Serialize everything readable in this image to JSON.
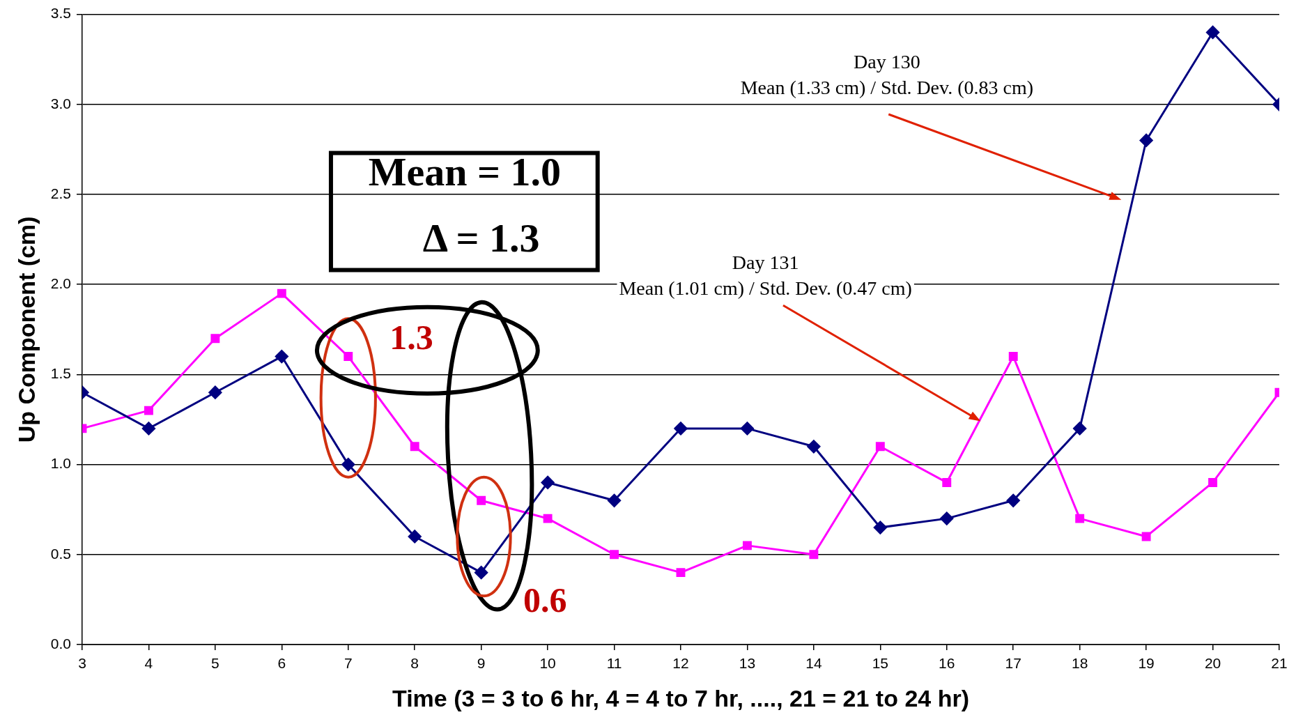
{
  "chart_data": {
    "type": "line",
    "xlabel": "Time (3 = 3 to 6 hr, 4 = 4 to 7 hr, ...., 21 = 21 to 24 hr)",
    "ylabel": "Up Component (cm)",
    "x": [
      3,
      4,
      5,
      6,
      7,
      8,
      9,
      10,
      11,
      12,
      13,
      14,
      15,
      16,
      17,
      18,
      19,
      20,
      21
    ],
    "series": [
      {
        "color": "#000080",
        "marker": "diamond",
        "values": [
          1.4,
          1.2,
          1.4,
          1.6,
          1.0,
          0.6,
          0.4,
          0.9,
          0.8,
          1.2,
          1.2,
          1.1,
          0.65,
          0.7,
          0.8,
          1.2,
          2.8,
          3.4,
          3.0
        ]
      },
      {
        "color": "#ff00ff",
        "marker": "square",
        "values": [
          1.2,
          1.3,
          1.7,
          1.95,
          1.6,
          1.1,
          0.8,
          0.7,
          0.5,
          0.4,
          0.55,
          0.5,
          1.1,
          0.9,
          1.6,
          0.7,
          0.6,
          0.9,
          1.4
        ]
      }
    ],
    "xlim": [
      3,
      21
    ],
    "xticks": [
      3,
      4,
      5,
      6,
      7,
      8,
      9,
      10,
      11,
      12,
      13,
      14,
      15,
      16,
      17,
      18,
      19,
      20,
      21
    ],
    "ylim": [
      0,
      3.5
    ],
    "yticks": [
      {
        "value": 0,
        "label": "0.0"
      },
      {
        "value": 0.5,
        "label": "0.5"
      },
      {
        "value": 1,
        "label": "1.0"
      },
      {
        "value": 1.5,
        "label": "1.5"
      },
      {
        "value": 2,
        "label": "2.0"
      },
      {
        "value": 2.5,
        "label": "2.5"
      },
      {
        "value": 3,
        "label": "3.0"
      },
      {
        "value": 3.5,
        "label": "3.5"
      }
    ],
    "grid": "y",
    "legend": false,
    "line_style": "solid",
    "annotations": [
      "Day 130\nMean (1.33 cm) / Std. Dev. (0.83 cm)",
      "Day 131\nMean (1.01 cm) / Std. Dev. (0.47 cm)",
      "Mean = 1.0",
      "Δ = 1.3",
      "1.3",
      "0.6"
    ]
  }
}
